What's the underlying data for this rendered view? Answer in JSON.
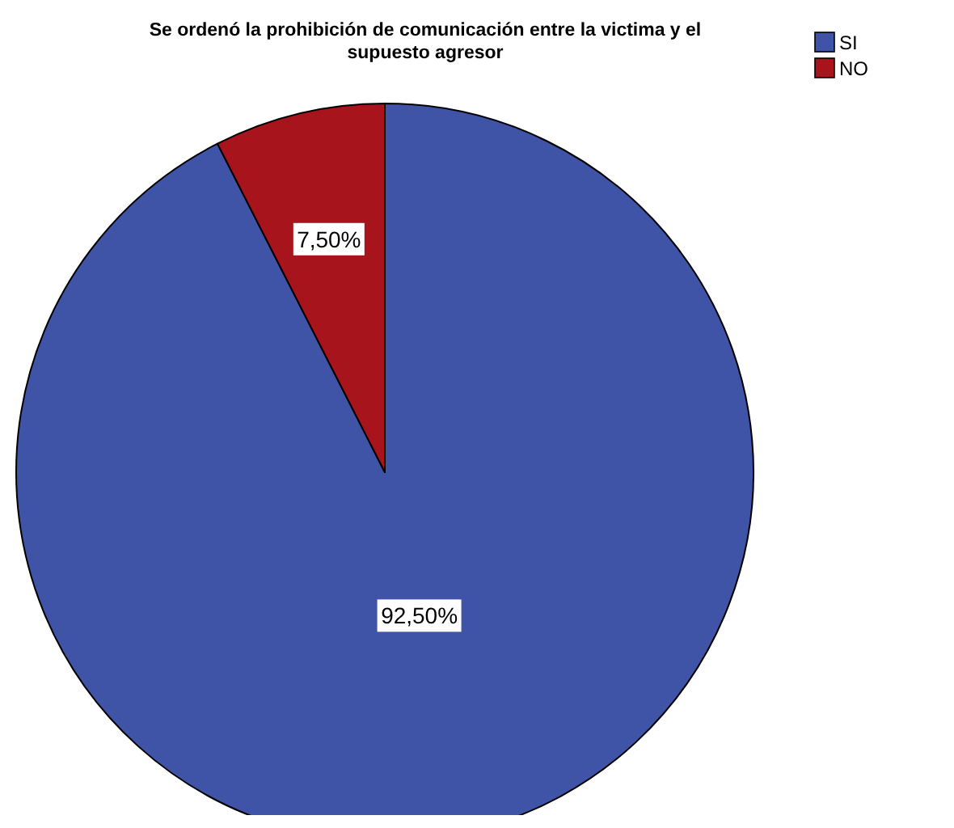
{
  "chart_data": {
    "type": "pie",
    "title": "Se ordenó la prohibición de comunicación entre la victima y el supuesto agresor",
    "categories": [
      "SI",
      "NO"
    ],
    "values": [
      92.5,
      7.5
    ],
    "colors": [
      "#3f54a6",
      "#a8141c"
    ],
    "value_labels": [
      "92,50%",
      "7,50%"
    ],
    "legend": "top right"
  }
}
